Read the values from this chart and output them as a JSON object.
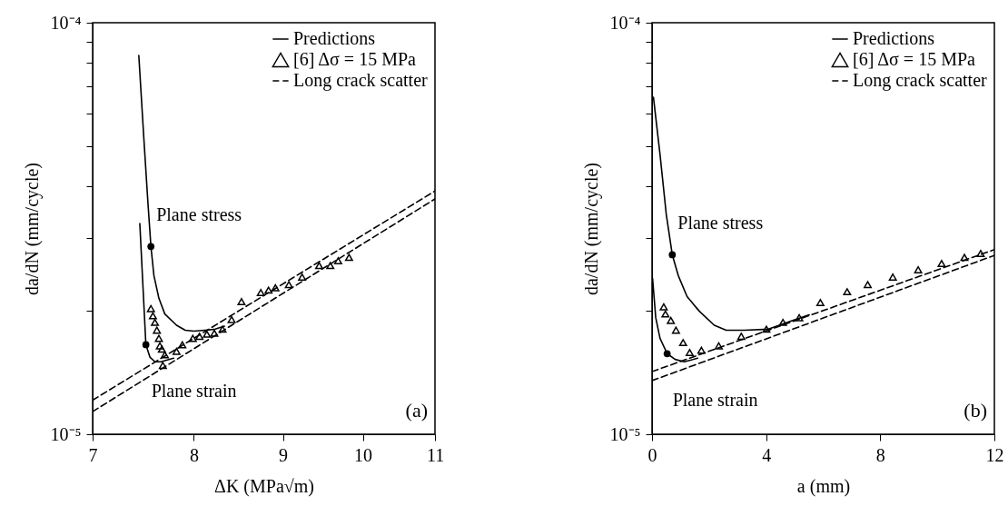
{
  "chart_data": [
    {
      "type": "line",
      "xlabel": "ΔK (MPa√m)",
      "ylabel": "da/dN (mm/cycle)",
      "log": "xy",
      "xlim": [
        7,
        11
      ],
      "ylim": [
        1e-05,
        0.0001
      ],
      "xticks": [
        7,
        8,
        9,
        10,
        11
      ],
      "yticks": [
        {
          "value": 1e-05,
          "label": "10⁻⁵"
        },
        {
          "value": 2e-05,
          "label": null
        },
        {
          "value": 3e-05,
          "label": null
        },
        {
          "value": 4e-05,
          "label": null
        },
        {
          "value": 5e-05,
          "label": null
        },
        {
          "value": 6e-05,
          "label": null
        },
        {
          "value": 7e-05,
          "label": null
        },
        {
          "value": 8e-05,
          "label": null
        },
        {
          "value": 9e-05,
          "label": null
        },
        {
          "value": 0.0001,
          "label": "10⁻⁴"
        }
      ],
      "legend": "top right",
      "series": [
        {
          "name": "Predictions",
          "type": "line",
          "line_style": "solid",
          "color": "#000000",
          "x": [
            7.44,
            7.49,
            7.53,
            7.56,
            7.59,
            7.64,
            7.7,
            7.82,
            7.91,
            8.0,
            8.12,
            8.23,
            8.33
          ],
          "values": [
            8.33e-05,
            5.22e-05,
            3.66e-05,
            2.86e-05,
            2.43e-05,
            2.14e-05,
            1.96e-05,
            1.84e-05,
            1.79e-05,
            1.78e-05,
            1.79e-05,
            1.8e-05,
            1.83e-05
          ]
        },
        {
          "name": "Predictions",
          "type": "line",
          "line_style": "solid",
          "color": "#000000",
          "x": [
            7.45,
            7.48,
            7.51,
            7.55,
            7.6,
            7.66,
            7.79
          ],
          "values": [
            3.25e-05,
            2.31e-05,
            1.65e-05,
            1.54e-05,
            1.5e-05,
            1.5e-05,
            1.53e-05
          ]
        },
        {
          "name": "[6] Δσ = 15 MPa",
          "type": "scatter",
          "marker": "triangle",
          "color": "#000000",
          "x": [
            7.56,
            7.58,
            7.6,
            7.62,
            7.64,
            7.65,
            7.67,
            7.7,
            7.68,
            7.82,
            7.88,
            7.99,
            8.06,
            8.14,
            8.22,
            8.31,
            8.41,
            8.52,
            8.74,
            8.83,
            8.91,
            9.07,
            9.23,
            9.44,
            9.58,
            9.68,
            9.82
          ],
          "values": [
            2.02e-05,
            1.94e-05,
            1.87e-05,
            1.79e-05,
            1.71e-05,
            1.64e-05,
            1.61e-05,
            1.56e-05,
            1.47e-05,
            1.59e-05,
            1.65e-05,
            1.71e-05,
            1.73e-05,
            1.75e-05,
            1.76e-05,
            1.8e-05,
            1.9e-05,
            2.1e-05,
            2.21e-05,
            2.24e-05,
            2.27e-05,
            2.31e-05,
            2.41e-05,
            2.57e-05,
            2.57e-05,
            2.64e-05,
            2.69e-05
          ]
        },
        {
          "name": "Long crack scatter",
          "type": "line",
          "line_style": "dashed",
          "color": "#000000",
          "x": [
            7,
            11
          ],
          "values": [
            1.21e-05,
            3.9e-05
          ]
        },
        {
          "name": "Long crack scatter",
          "type": "line",
          "line_style": "dashed",
          "color": "#000000",
          "x": [
            7,
            11
          ],
          "values": [
            1.135e-05,
            3.73e-05
          ]
        }
      ],
      "annotations": [
        {
          "text": "Plane stress",
          "x": 7.56,
          "y": 2.86e-05
        },
        {
          "text": "Plane strain",
          "x": 7.51,
          "y": 1.65e-05
        },
        "(a)"
      ]
    },
    {
      "type": "line",
      "xlabel": "a (mm)",
      "ylabel": "da/dN (mm/cycle)",
      "log": "y",
      "xlim": [
        0,
        12
      ],
      "ylim": [
        1e-05,
        0.0001
      ],
      "xticks": [
        0,
        4,
        8,
        12
      ],
      "yticks": [
        {
          "value": 1e-05,
          "label": "10⁻⁵"
        },
        {
          "value": 2e-05,
          "label": null
        },
        {
          "value": 3e-05,
          "label": null
        },
        {
          "value": 4e-05,
          "label": null
        },
        {
          "value": 5e-05,
          "label": null
        },
        {
          "value": 6e-05,
          "label": null
        },
        {
          "value": 7e-05,
          "label": null
        },
        {
          "value": 8e-05,
          "label": null
        },
        {
          "value": 9e-05,
          "label": null
        },
        {
          "value": 0.0001,
          "label": "10⁻⁴"
        }
      ],
      "legend": "top right",
      "series": [
        {
          "name": "Predictions",
          "type": "line",
          "line_style": "solid",
          "color": "#000000",
          "x": [
            0.05,
            0.28,
            0.5,
            0.71,
            0.92,
            1.23,
            1.66,
            2.18,
            2.6,
            3.23,
            4.08,
            4.93,
            5.51
          ],
          "values": [
            6.59e-05,
            4.79e-05,
            3.42e-05,
            2.73e-05,
            2.43e-05,
            2.16e-05,
            1.99e-05,
            1.84e-05,
            1.79e-05,
            1.79e-05,
            1.8e-05,
            1.89e-05,
            1.95e-05
          ]
        },
        {
          "name": "Predictions",
          "type": "line",
          "line_style": "solid",
          "color": "#000000",
          "x": [
            0.02,
            0.13,
            0.28,
            0.53,
            0.81,
            1.13,
            1.6
          ],
          "values": [
            2.39e-05,
            1.92e-05,
            1.71e-05,
            1.57e-05,
            1.52e-05,
            1.5e-05,
            1.53e-05
          ]
        },
        {
          "name": "[6] Δσ = 15 MPa",
          "type": "scatter",
          "marker": "triangle",
          "color": "#000000",
          "x": [
            0.41,
            0.47,
            0.66,
            0.84,
            1.09,
            1.32,
            1.73,
            2.34,
            3.13,
            4.01,
            4.59,
            5.16,
            5.9,
            6.84,
            7.56,
            8.44,
            9.33,
            10.15,
            10.95,
            11.52
          ],
          "values": [
            2.04e-05,
            1.96e-05,
            1.89e-05,
            1.79e-05,
            1.67e-05,
            1.58e-05,
            1.6e-05,
            1.64e-05,
            1.73e-05,
            1.8e-05,
            1.87e-05,
            1.92e-05,
            2.09e-05,
            2.22e-05,
            2.31e-05,
            2.41e-05,
            2.51e-05,
            2.6e-05,
            2.69e-05,
            2.75e-05
          ]
        },
        {
          "name": "Long crack scatter",
          "type": "line",
          "line_style": "dashed",
          "color": "#000000",
          "x": [
            0,
            12
          ],
          "values": [
            1.42e-05,
            2.81e-05
          ]
        },
        {
          "name": "Long crack scatter",
          "type": "line",
          "line_style": "dashed",
          "color": "#000000",
          "x": [
            0,
            12
          ],
          "values": [
            1.35e-05,
            2.72e-05
          ]
        }
      ],
      "annotations": [
        {
          "text": "Plane stress",
          "x": 0.71,
          "y": 2.73e-05
        },
        {
          "text": "Plane strain",
          "x": 0.53,
          "y": 1.57e-05
        },
        "(b)"
      ]
    }
  ]
}
